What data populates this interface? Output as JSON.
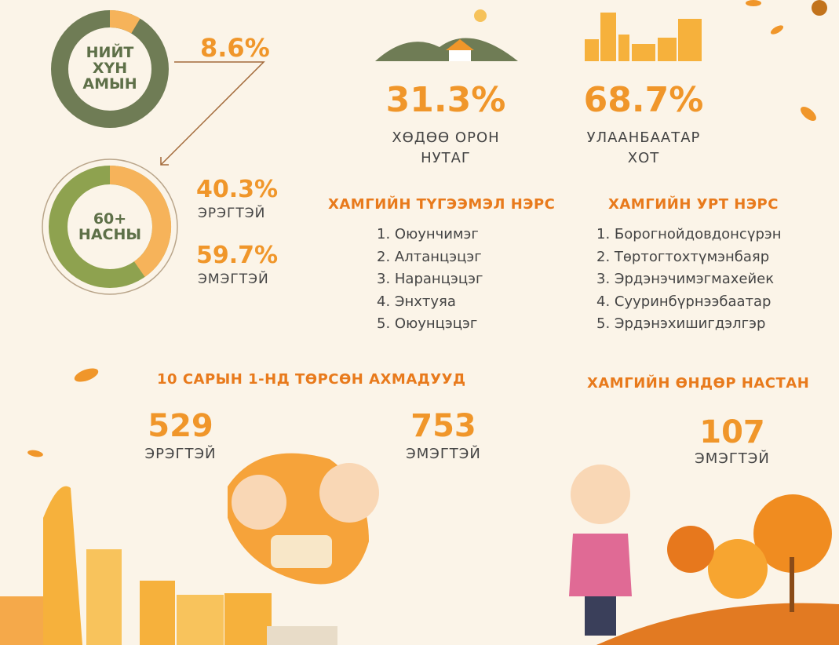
{
  "colors": {
    "accent": "#f0962a",
    "olive": "#6f7c55",
    "green": "#8ea24f",
    "bg": "#fbf4e8"
  },
  "total": {
    "ring_label": [
      "НИЙТ",
      "ХҮН",
      "АМЫН"
    ],
    "percent": "8.6%",
    "share": 0.086
  },
  "elderly": {
    "ring_label": [
      "60+",
      "НАСНЫ"
    ],
    "male_share": 0.403,
    "male": {
      "percent": "40.3%",
      "label": "ЭРЭГТЭЙ"
    },
    "female": {
      "percent": "59.7%",
      "label": "ЭМЭГТЭЙ"
    }
  },
  "rural": {
    "percent": "31.3%",
    "label_lines": [
      "ХӨДӨӨ ОРОН",
      "НУТАГ"
    ]
  },
  "city": {
    "percent": "68.7%",
    "label_lines": [
      "УЛААНБААТАР",
      "ХОТ"
    ]
  },
  "common_names": {
    "title": "ХАМГИЙН ТҮГЭЭМЭЛ НЭРС",
    "items": [
      "1. Оюунчимэг",
      "2. Алтанцэцэг",
      "3. Наранцэцэг",
      "4. Энхтуяа",
      "5. Оюунцэцэг"
    ]
  },
  "long_names": {
    "title": "ХАМГИЙН УРТ НЭРС",
    "items": [
      "1. Борогнойдовдонсүрэн",
      "2. Төртогтохтүмэнбаяр",
      "3. Эрдэнэчимэгмахейек",
      "4. Суурин​бүрнээбаатар",
      "5. Эрдэнэхишигдэлгэр"
    ]
  },
  "born_oct1": {
    "title": "10 САРЫН 1-НД ТӨРСӨН АХМАДУУД",
    "male": {
      "value": "529",
      "label": "ЭРЭГТЭЙ"
    },
    "female": {
      "value": "753",
      "label": "ЭМЭГТЭЙ"
    }
  },
  "oldest": {
    "title": "ХАМГИЙН ӨНДӨР НАСТАН",
    "value": "107",
    "label": "ЭМЭГТЭЙ"
  }
}
